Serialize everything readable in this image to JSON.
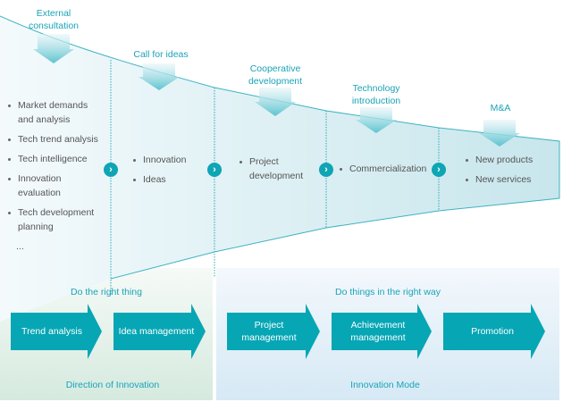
{
  "inputs": [
    {
      "label": "External consultation"
    },
    {
      "label": "Call for ideas"
    },
    {
      "label": "Cooperative development"
    },
    {
      "label": "Technology introduction"
    },
    {
      "label": "M&A"
    }
  ],
  "stages": [
    {
      "items": [
        "Market demands and analysis",
        "Tech trend analysis",
        "Tech intelligence",
        "Innovation evaluation",
        "Tech development planning"
      ],
      "ellipsis": "..."
    },
    {
      "items": [
        "Innovation",
        "Ideas"
      ]
    },
    {
      "items": [
        "Project development"
      ]
    },
    {
      "items": [
        "Commercialization"
      ]
    },
    {
      "items": [
        "New products",
        "New services"
      ]
    }
  ],
  "left_panel": {
    "subtitle": "Do the right thing",
    "steps": [
      "Trend analysis",
      "Idea management"
    ],
    "title": "Direction of Innovation"
  },
  "right_panel": {
    "subtitle": "Do things in the right way",
    "steps": [
      "Project management",
      "Achievement management",
      "Promotion"
    ],
    "title": "Innovation Mode"
  },
  "colors": {
    "accent": "#0ea5b4",
    "heading": "#1aa3b8",
    "step": "#06a6b5"
  }
}
